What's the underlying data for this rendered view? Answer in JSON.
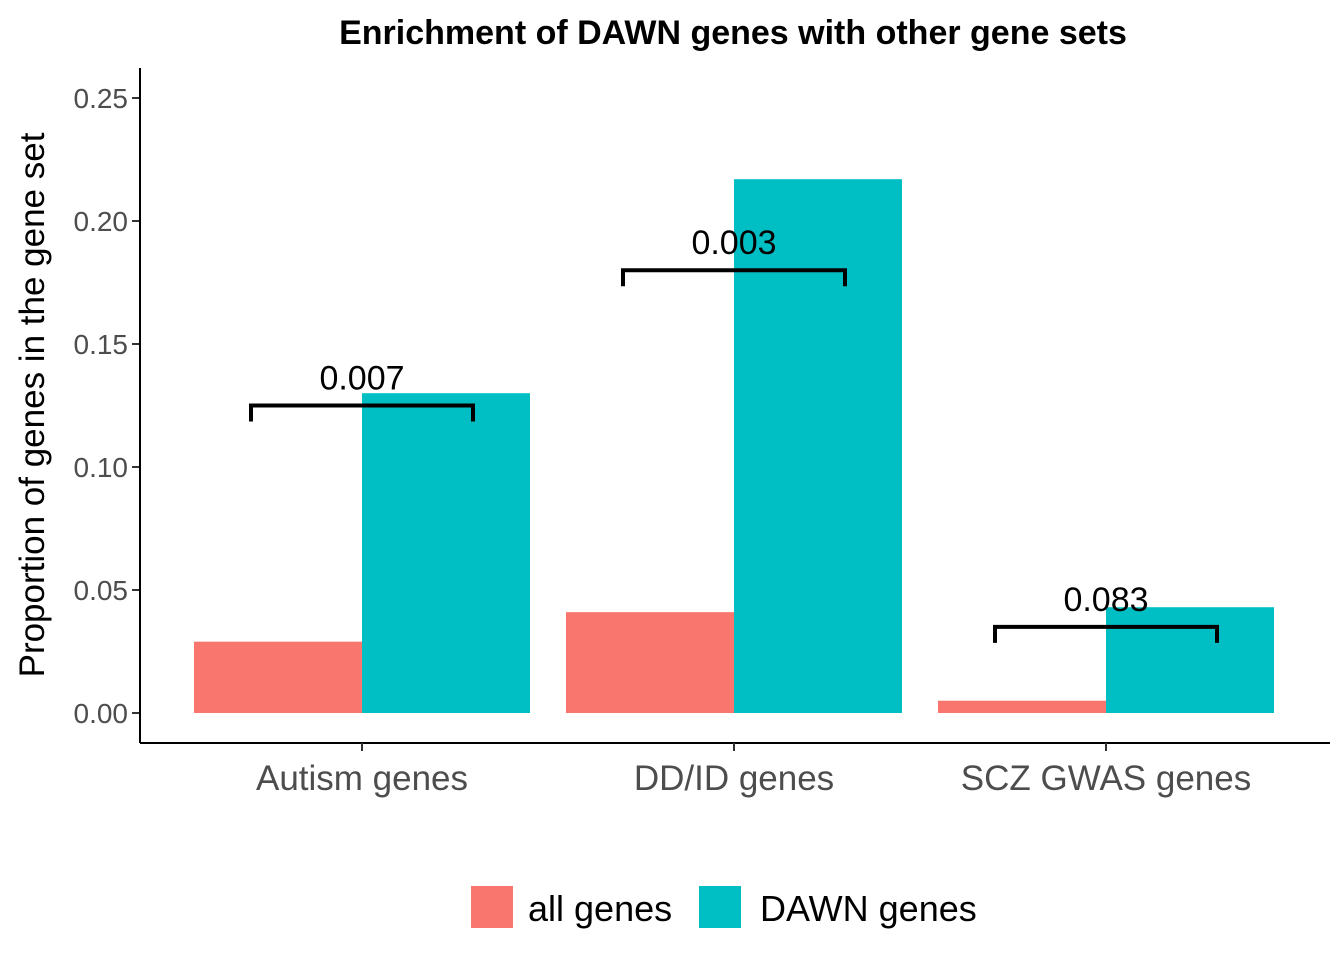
{
  "chart_data": {
    "type": "bar",
    "title": "Enrichment of DAWN genes with other gene sets",
    "xlabel": "",
    "ylabel": "Proportion of genes in the gene set",
    "categories": [
      "Autism genes",
      "DD/ID genes",
      "SCZ GWAS genes"
    ],
    "series": [
      {
        "name": "all genes",
        "color": "#F8766D",
        "values": [
          0.029,
          0.041,
          0.005
        ]
      },
      {
        "name": "DAWN genes",
        "color": "#00BFC4",
        "values": [
          0.13,
          0.217,
          0.043
        ]
      }
    ],
    "ylim": [
      0,
      0.26
    ],
    "yticks": [
      "0.00",
      "0.05",
      "0.10",
      "0.15",
      "0.20",
      "0.25"
    ],
    "annotations": [
      {
        "category": "Autism genes",
        "label": "0.007",
        "y": 0.125
      },
      {
        "category": "DD/ID genes",
        "label": "0.003",
        "y": 0.18
      },
      {
        "category": "SCZ GWAS genes",
        "label": "0.083",
        "y": 0.035
      }
    ],
    "legend": {
      "position": "bottom",
      "items": [
        "all genes",
        "DAWN genes"
      ]
    },
    "grid": false
  }
}
